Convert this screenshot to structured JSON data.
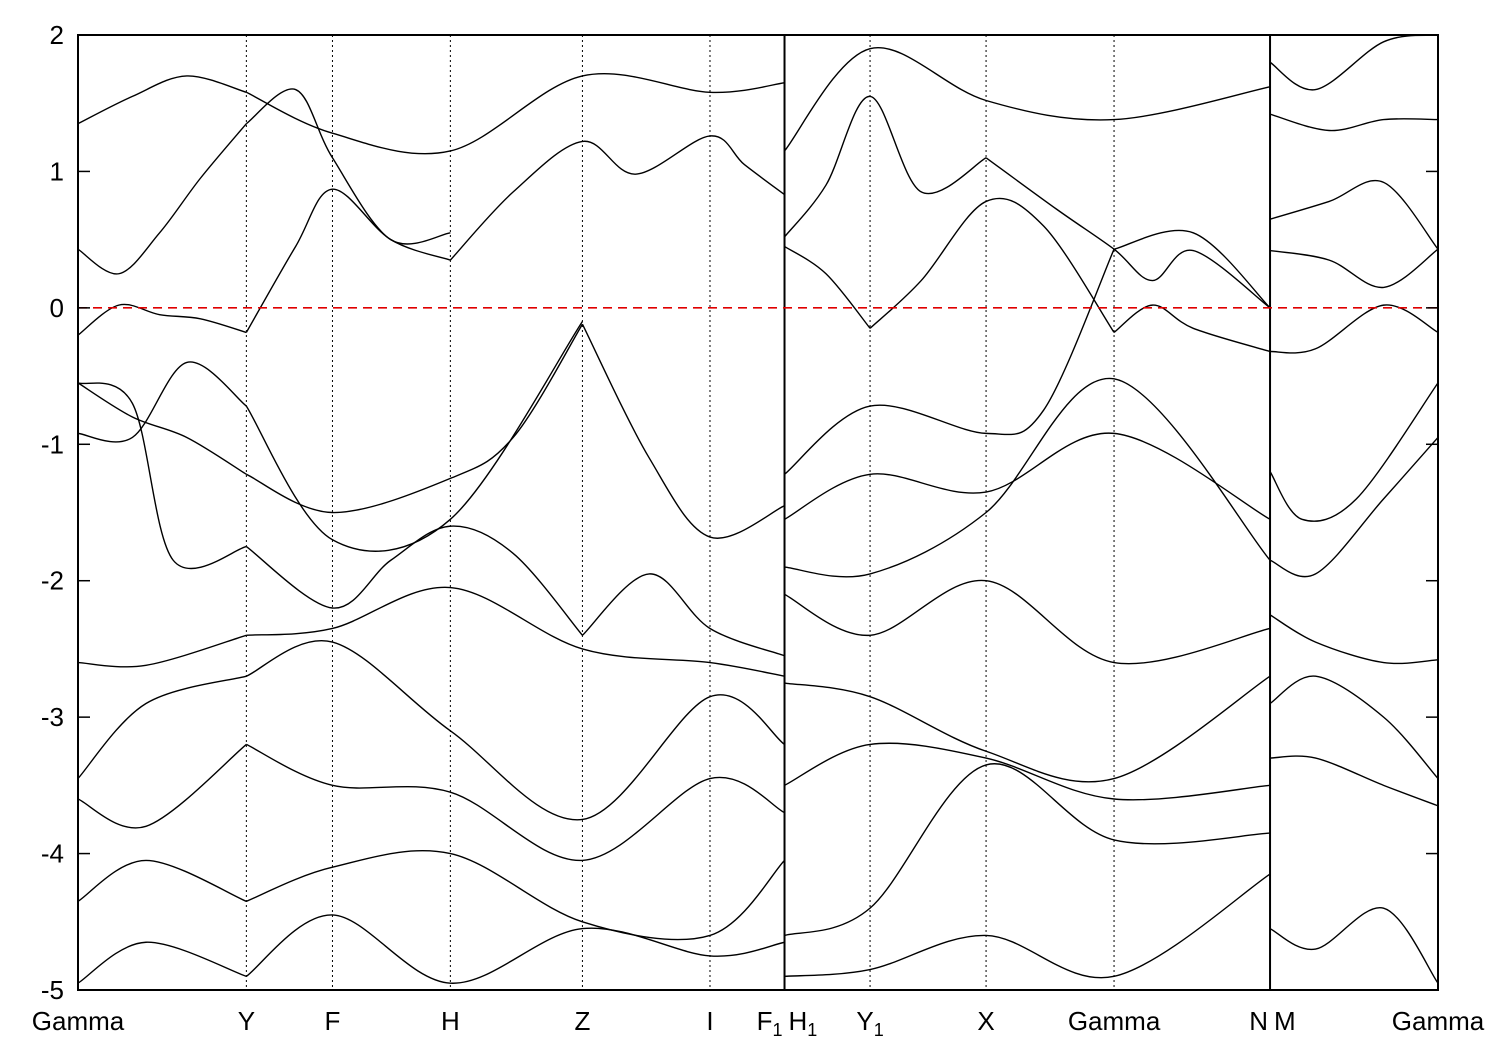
{
  "chart_data": {
    "type": "line",
    "title": "",
    "xlabel": "",
    "ylabel": "",
    "ylim": [
      -5,
      2
    ],
    "yticks": [
      -5,
      -4,
      -3,
      -2,
      -1,
      0,
      1,
      2
    ],
    "grid": false,
    "colors": {
      "bands": "#000000",
      "fermi_level": "#e00000"
    },
    "path_segments": [
      {
        "from": "Gamma",
        "to": "F₁",
        "labels": [
          {
            "text": "Gamma",
            "x": 0
          },
          {
            "text": "Y",
            "x": 0.1238
          },
          {
            "text": "F",
            "x": 0.1871
          },
          {
            "text": "H",
            "x": 0.2738
          },
          {
            "text": "Z",
            "x": 0.3709
          },
          {
            "text": "I",
            "x": 0.4647
          },
          {
            "text": "F₁",
            "x": 0.5195
          }
        ]
      },
      {
        "from": "H₁",
        "to": "N",
        "labels": [
          {
            "text": "H₁",
            "x": 0.5195
          },
          {
            "text": "Y₁",
            "x": 0.5824
          },
          {
            "text": "X",
            "x": 0.6677
          },
          {
            "text": "Gamma",
            "x": 0.7618
          },
          {
            "text": "N",
            "x": 0.8765
          }
        ]
      },
      {
        "from": "M",
        "to": "Gamma",
        "labels": [
          {
            "text": "M",
            "x": 0.8765
          },
          {
            "text": "Gamma",
            "x": 1.0
          }
        ]
      }
    ],
    "fermi_level": 0,
    "series": [
      {
        "x": [
          0,
          0.03,
          0.06,
          0.09,
          0.1238
        ],
        "y": [
          -0.2,
          0.02,
          -0.05,
          -0.08,
          -0.18
        ]
      },
      {
        "x": [
          0.1238,
          0.16,
          0.1871,
          0.23,
          0.2738
        ],
        "y": [
          -0.18,
          0.45,
          0.87,
          0.5,
          0.35
        ]
      },
      {
        "x": [
          0.2738,
          0.32,
          0.3709,
          0.41,
          0.4647,
          0.49,
          0.5195
        ],
        "y": [
          0.35,
          0.85,
          1.22,
          0.98,
          1.26,
          1.05,
          0.83
        ]
      },
      {
        "x": [
          0,
          0.03,
          0.06,
          0.09,
          0.1238
        ],
        "y": [
          0.43,
          0.25,
          0.55,
          0.95,
          1.35
        ]
      },
      {
        "x": [
          0.1238,
          0.16,
          0.1871,
          0.23,
          0.2738
        ],
        "y": [
          1.35,
          1.6,
          1.1,
          0.5,
          0.55
        ]
      },
      {
        "x": [
          0,
          0.04,
          0.08,
          0.1238
        ],
        "y": [
          1.35,
          1.55,
          1.7,
          1.58
        ]
      },
      {
        "x": [
          0.1238,
          0.1871,
          0.2738,
          0.3709,
          0.4647,
          0.5195
        ],
        "y": [
          1.58,
          1.28,
          1.15,
          1.7,
          1.58,
          1.65
        ]
      },
      {
        "x": [
          0,
          0.04,
          0.08,
          0.1238
        ],
        "y": [
          -0.55,
          -0.8,
          -0.95,
          -1.22
        ]
      },
      {
        "x": [
          0.1238,
          0.1871,
          0.2738,
          0.32,
          0.3709
        ],
        "y": [
          -1.22,
          -1.5,
          -1.25,
          -0.95,
          -0.12
        ]
      },
      {
        "x": [
          0.3709,
          0.42,
          0.4647,
          0.5195
        ],
        "y": [
          -0.12,
          -1.1,
          -1.68,
          -1.45
        ]
      },
      {
        "x": [
          0,
          0.04,
          0.08,
          0.1238
        ],
        "y": [
          -0.92,
          -0.95,
          -0.4,
          -0.72
        ]
      },
      {
        "x": [
          0.1238,
          0.1871,
          0.2738,
          0.3709
        ],
        "y": [
          -0.72,
          -1.7,
          -1.55,
          -0.1
        ]
      },
      {
        "x": [
          0,
          0.04,
          0.07,
          0.1238
        ],
        "y": [
          -0.55,
          -0.7,
          -1.85,
          -1.75
        ]
      },
      {
        "x": [
          0.1238,
          0.1871,
          0.23,
          0.2738,
          0.32,
          0.3709
        ],
        "y": [
          -1.75,
          -2.2,
          -1.85,
          -1.6,
          -1.8,
          -2.4
        ]
      },
      {
        "x": [
          0.3709,
          0.42,
          0.4647,
          0.5195
        ],
        "y": [
          -2.4,
          -1.95,
          -2.35,
          -2.55
        ]
      },
      {
        "x": [
          0,
          0.05,
          0.1238
        ],
        "y": [
          -2.6,
          -2.62,
          -2.4
        ]
      },
      {
        "x": [
          0.1238,
          0.1871,
          0.2738,
          0.3709,
          0.4647,
          0.5195
        ],
        "y": [
          -2.4,
          -2.35,
          -2.05,
          -2.5,
          -2.6,
          -2.7
        ]
      },
      {
        "x": [
          0,
          0.05,
          0.1238
        ],
        "y": [
          -3.45,
          -2.9,
          -2.7
        ]
      },
      {
        "x": [
          0.1238,
          0.1871,
          0.2738,
          0.3709,
          0.4647,
          0.5195
        ],
        "y": [
          -2.7,
          -2.45,
          -3.1,
          -3.75,
          -2.85,
          -3.2
        ]
      },
      {
        "x": [
          0,
          0.05,
          0.1238
        ],
        "y": [
          -3.6,
          -3.8,
          -3.2
        ]
      },
      {
        "x": [
          0.1238,
          0.1871,
          0.2738,
          0.3709,
          0.4647,
          0.5195
        ],
        "y": [
          -3.2,
          -3.5,
          -3.55,
          -4.05,
          -3.45,
          -3.7
        ]
      },
      {
        "x": [
          0,
          0.05,
          0.1238
        ],
        "y": [
          -4.35,
          -4.05,
          -4.35
        ]
      },
      {
        "x": [
          0.1238,
          0.1871,
          0.2738,
          0.3709,
          0.4647,
          0.5195
        ],
        "y": [
          -4.35,
          -4.1,
          -4.0,
          -4.5,
          -4.6,
          -4.05
        ]
      },
      {
        "x": [
          0,
          0.05,
          0.1238
        ],
        "y": [
          -4.95,
          -4.65,
          -4.9
        ]
      },
      {
        "x": [
          0.1238,
          0.1871,
          0.2738,
          0.3709,
          0.4647,
          0.5195
        ],
        "y": [
          -4.9,
          -4.45,
          -4.95,
          -4.55,
          -4.75,
          -4.65
        ]
      },
      {
        "x": [
          0.5195,
          0.55,
          0.5824
        ],
        "y": [
          0.45,
          0.25,
          -0.15
        ]
      },
      {
        "x": [
          0.5824,
          0.62,
          0.6677,
          0.71,
          0.7618
        ],
        "y": [
          -0.15,
          0.2,
          0.78,
          0.6,
          -0.18
        ]
      },
      {
        "x": [
          0.7618,
          0.79,
          0.82,
          0.8765
        ],
        "y": [
          -0.18,
          0.02,
          -0.15,
          -0.32
        ]
      },
      {
        "x": [
          0.5195,
          0.55,
          0.5824,
          0.62,
          0.6677
        ],
        "y": [
          0.52,
          0.9,
          1.55,
          0.85,
          1.1
        ]
      },
      {
        "x": [
          0.6677,
          0.72,
          0.7618,
          0.79,
          0.82,
          0.8765
        ],
        "y": [
          1.1,
          0.72,
          0.43,
          0.2,
          0.42,
          0.0
        ]
      },
      {
        "x": [
          0.5195,
          0.5824,
          0.6677,
          0.7618,
          0.8765
        ],
        "y": [
          1.15,
          1.9,
          1.52,
          1.38,
          1.62
        ]
      },
      {
        "x": [
          0.5195,
          0.5824,
          0.6677,
          0.71,
          0.7618
        ],
        "y": [
          -1.22,
          -0.72,
          -0.92,
          -0.75,
          0.43
        ]
      },
      {
        "x": [
          0.7618,
          0.82,
          0.8765
        ],
        "y": [
          0.43,
          0.55,
          0.0
        ]
      },
      {
        "x": [
          0.5195,
          0.5824,
          0.6677,
          0.7618,
          0.8765
        ],
        "y": [
          -1.55,
          -1.22,
          -1.35,
          -0.92,
          -1.55
        ]
      },
      {
        "x": [
          0.5195,
          0.5824,
          0.6677,
          0.7618,
          0.8765
        ],
        "y": [
          -1.9,
          -1.95,
          -1.5,
          -0.52,
          -1.85
        ]
      },
      {
        "x": [
          0.5195,
          0.5824,
          0.6677,
          0.7618,
          0.8765
        ],
        "y": [
          -2.1,
          -2.4,
          -2.0,
          -2.6,
          -2.35
        ]
      },
      {
        "x": [
          0.5195,
          0.5824,
          0.6677,
          0.7618,
          0.8765
        ],
        "y": [
          -2.75,
          -2.85,
          -3.25,
          -3.45,
          -2.7
        ]
      },
      {
        "x": [
          0.5195,
          0.5824,
          0.6677,
          0.7618,
          0.8765
        ],
        "y": [
          -3.5,
          -3.2,
          -3.3,
          -3.6,
          -3.5
        ]
      },
      {
        "x": [
          0.5195,
          0.5824,
          0.6677,
          0.7618,
          0.8765
        ],
        "y": [
          -4.6,
          -4.4,
          -3.35,
          -3.9,
          -3.85
        ]
      },
      {
        "x": [
          0.5195,
          0.5824,
          0.6677,
          0.7618,
          0.8765
        ],
        "y": [
          -4.9,
          -4.85,
          -4.6,
          -4.9,
          -4.15
        ]
      },
      {
        "x": [
          0.8765,
          0.9,
          0.94,
          1.0
        ],
        "y": [
          -1.2,
          -1.55,
          -1.4,
          -0.55
        ]
      },
      {
        "x": [
          0.8765,
          0.91,
          0.96,
          1.0
        ],
        "y": [
          -0.32,
          -0.3,
          0.02,
          -0.18
        ]
      },
      {
        "x": [
          0.8765,
          0.92,
          0.96,
          1.0
        ],
        "y": [
          0.42,
          0.35,
          0.15,
          0.43
        ]
      },
      {
        "x": [
          0.8765,
          0.92,
          0.96,
          1.0
        ],
        "y": [
          0.65,
          0.78,
          0.92,
          0.43
        ]
      },
      {
        "x": [
          0.8765,
          0.92,
          0.96,
          1.0
        ],
        "y": [
          1.42,
          1.3,
          1.38,
          1.38
        ]
      },
      {
        "x": [
          0.8765,
          0.91,
          0.96,
          1.0
        ],
        "y": [
          1.8,
          1.6,
          1.95,
          2.0
        ]
      },
      {
        "x": [
          0.8765,
          0.91,
          0.96,
          1.0
        ],
        "y": [
          -1.85,
          -1.95,
          -1.4,
          -0.95
        ]
      },
      {
        "x": [
          0.8765,
          0.91,
          0.96,
          1.0
        ],
        "y": [
          -2.25,
          -2.45,
          -2.6,
          -2.58
        ]
      },
      {
        "x": [
          0.8765,
          0.91,
          0.96,
          1.0
        ],
        "y": [
          -2.9,
          -2.7,
          -3.0,
          -3.45
        ]
      },
      {
        "x": [
          0.8765,
          0.91,
          0.96,
          1.0
        ],
        "y": [
          -3.3,
          -3.3,
          -3.5,
          -3.65
        ]
      },
      {
        "x": [
          0.8765,
          0.91,
          0.96,
          1.0
        ],
        "y": [
          -4.55,
          -4.7,
          -4.4,
          -4.95
        ]
      }
    ]
  }
}
